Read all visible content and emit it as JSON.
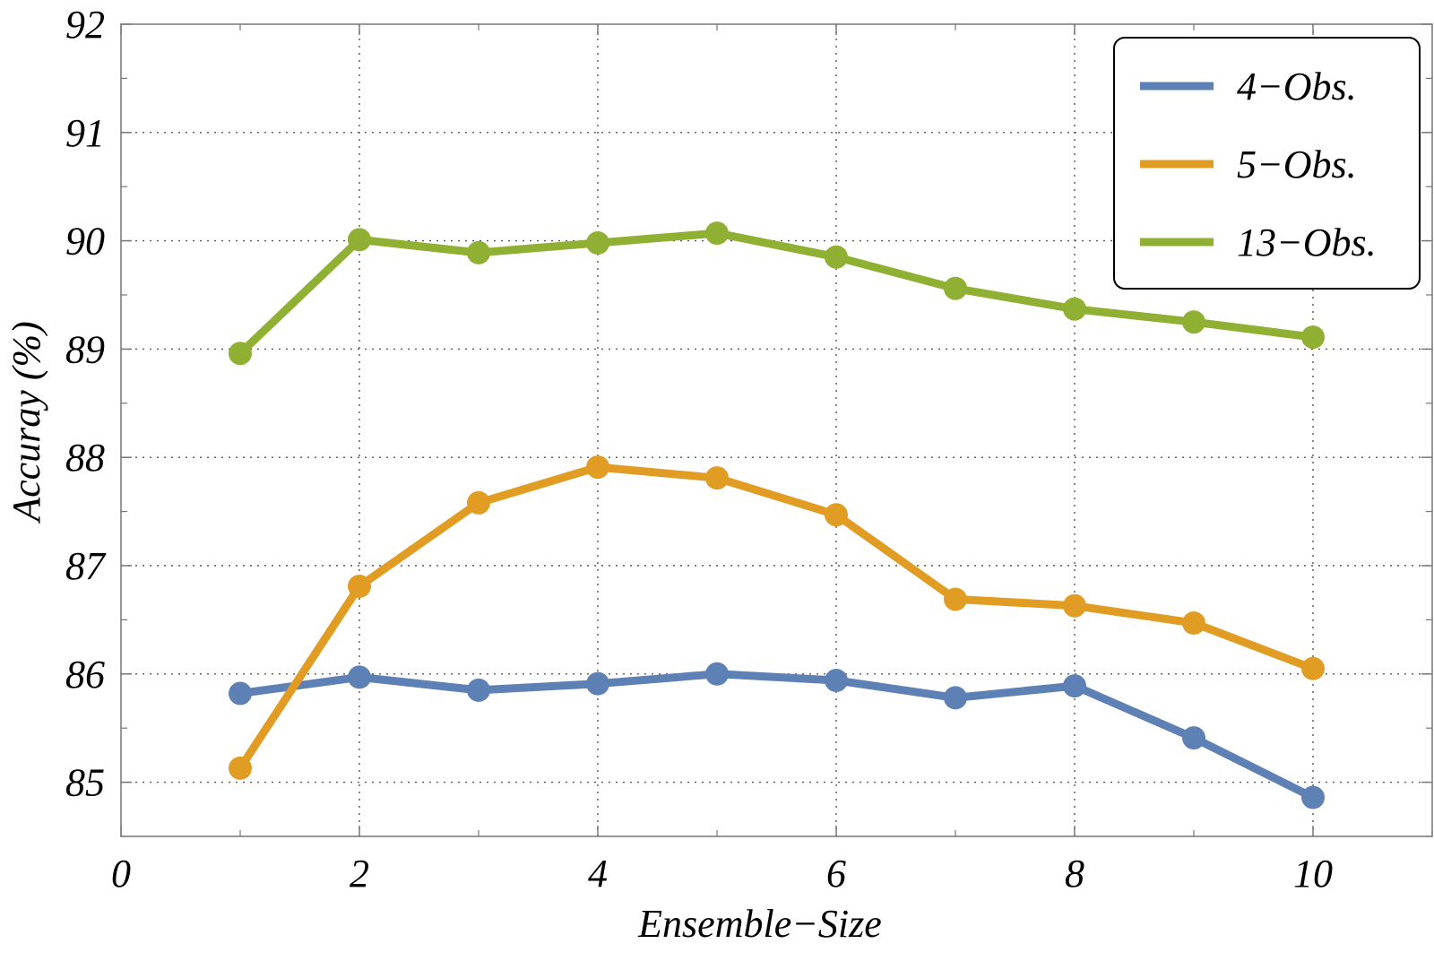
{
  "chart_data": {
    "type": "line",
    "title": "",
    "xlabel": "Ensemble−Size",
    "ylabel": "Accuray (%)",
    "xlim": [
      0,
      11
    ],
    "ylim": [
      84.5,
      92
    ],
    "x_ticks": [
      0,
      2,
      4,
      6,
      8,
      10
    ],
    "x_tick_labels": [
      "0",
      "2",
      "4",
      "6",
      "8",
      "10"
    ],
    "x_minor_ticks": [
      1,
      3,
      5,
      7,
      9,
      11
    ],
    "y_ticks": [
      85,
      86,
      87,
      88,
      89,
      90,
      91,
      92
    ],
    "y_tick_labels": [
      "85",
      "86",
      "87",
      "88",
      "89",
      "90",
      "91",
      "92"
    ],
    "grid": true,
    "legend_position": "top-right",
    "x": [
      1,
      2,
      3,
      4,
      5,
      6,
      7,
      8,
      9,
      10
    ],
    "series": [
      {
        "name": "4−Obs.",
        "color": "#5e81b5",
        "values": [
          85.82,
          85.97,
          85.85,
          85.91,
          86.0,
          85.94,
          85.78,
          85.89,
          85.41,
          84.86
        ]
      },
      {
        "name": "5−Obs.",
        "color": "#e19c24",
        "values": [
          85.13,
          86.81,
          87.58,
          87.91,
          87.81,
          87.47,
          86.69,
          86.63,
          86.47,
          86.05
        ]
      },
      {
        "name": "13−Obs.",
        "color": "#8fb032",
        "values": [
          88.96,
          90.01,
          89.89,
          89.98,
          90.07,
          89.85,
          89.56,
          89.37,
          89.25,
          89.11
        ]
      }
    ]
  }
}
